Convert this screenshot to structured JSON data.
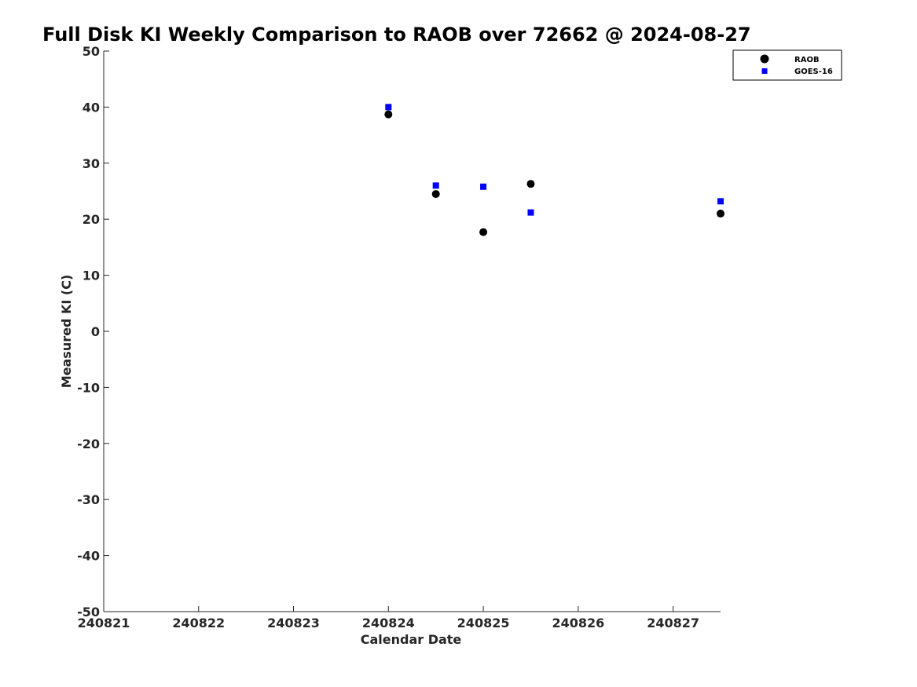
{
  "chart_data": {
    "type": "scatter",
    "title": "Full Disk KI Weekly Comparison to RAOB over 72662 @ 2024-08-27",
    "xlabel": "Calendar Date",
    "ylabel": "Measured KI (C)",
    "xlim": [
      240821,
      240827.5
    ],
    "ylim": [
      -50,
      50
    ],
    "x_ticks": [
      240821,
      240822,
      240823,
      240824,
      240825,
      240826,
      240827
    ],
    "x_tick_labels": [
      "240821",
      "240822",
      "240823",
      "240824",
      "240825",
      "240826",
      "240827"
    ],
    "y_ticks": [
      50,
      40,
      30,
      20,
      10,
      0,
      -10,
      -20,
      -30,
      -40,
      -50
    ],
    "y_tick_labels": [
      "50",
      "40",
      "30",
      "20",
      "10",
      "0",
      "-10",
      "-20",
      "-30",
      "-40",
      "-50"
    ],
    "grid": false,
    "legend_position": "top-right",
    "series": [
      {
        "name": "RAOB",
        "marker": "circle",
        "color": "#000000",
        "points": [
          {
            "x": 240824.0,
            "y": 38.7
          },
          {
            "x": 240824.5,
            "y": 24.5
          },
          {
            "x": 240825.0,
            "y": 17.7
          },
          {
            "x": 240825.5,
            "y": 26.3
          },
          {
            "x": 240827.5,
            "y": 21.0
          }
        ]
      },
      {
        "name": "GOES-16",
        "marker": "square",
        "color": "#0000ff",
        "points": [
          {
            "x": 240824.0,
            "y": 40.0
          },
          {
            "x": 240824.5,
            "y": 26.0
          },
          {
            "x": 240825.0,
            "y": 25.8
          },
          {
            "x": 240825.5,
            "y": 21.2
          },
          {
            "x": 240827.5,
            "y": 23.2
          }
        ]
      }
    ]
  }
}
